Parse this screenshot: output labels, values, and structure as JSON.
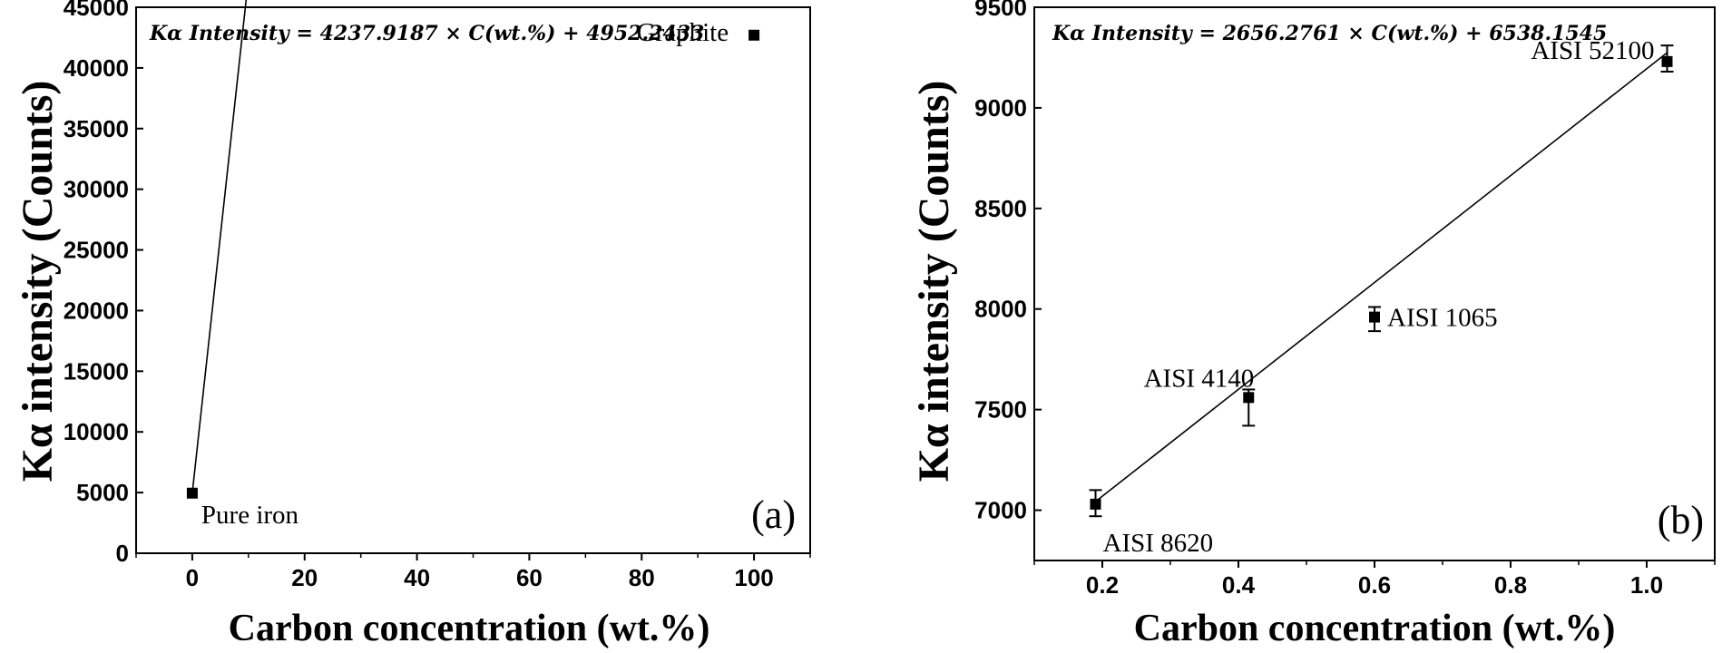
{
  "chart_data": [
    {
      "type": "scatter",
      "panel_label": "(a)",
      "equation": "Kα Intensity = 4237.9187 × C(wt.%) + 4952.2433",
      "xlabel": "Carbon concentration (wt.%)",
      "ylabel": "Kα intensity (Counts)",
      "xlim": [
        -10,
        110
      ],
      "ylim": [
        0,
        45000
      ],
      "xticks": [
        0,
        20,
        40,
        60,
        80,
        100
      ],
      "yticks": [
        0,
        5000,
        10000,
        15000,
        20000,
        25000,
        30000,
        35000,
        40000,
        45000
      ],
      "grid": false,
      "fit": {
        "slope": 4237.9187,
        "intercept": 4952.2433,
        "x_range": [
          0,
          100
        ]
      },
      "points": [
        {
          "label": "Pure iron",
          "x": 0,
          "y": 4952
        },
        {
          "label": "Graphite",
          "x": 100,
          "y": 42700
        }
      ]
    },
    {
      "type": "scatter",
      "panel_label": "(b)",
      "equation": "Kα Intensity = 2656.2761 × C(wt.%) + 6538.1545",
      "xlabel": "Carbon concentration (wt.%)",
      "ylabel": "Kα intensity (Counts)",
      "xlim": [
        0.1,
        1.1
      ],
      "ylim": [
        6750,
        9500
      ],
      "xticks": [
        0.2,
        0.4,
        0.6,
        0.8,
        1.0
      ],
      "yticks": [
        7000,
        7500,
        8000,
        8500,
        9000,
        9500
      ],
      "grid": false,
      "fit": {
        "slope": 2656.2761,
        "intercept": 6538.1545,
        "x_range": [
          0.19,
          1.03
        ]
      },
      "points": [
        {
          "label": "AISI 8620",
          "x": 0.19,
          "y": 7030,
          "err_low": 60,
          "err_high": 70
        },
        {
          "label": "AISI 4140",
          "x": 0.415,
          "y": 7560,
          "err_low": 140,
          "err_high": 40
        },
        {
          "label": "AISI 1065",
          "x": 0.6,
          "y": 7960,
          "err_low": 70,
          "err_high": 50
        },
        {
          "label": "AISI 52100",
          "x": 1.03,
          "y": 9230,
          "err_low": 50,
          "err_high": 80
        }
      ]
    }
  ]
}
